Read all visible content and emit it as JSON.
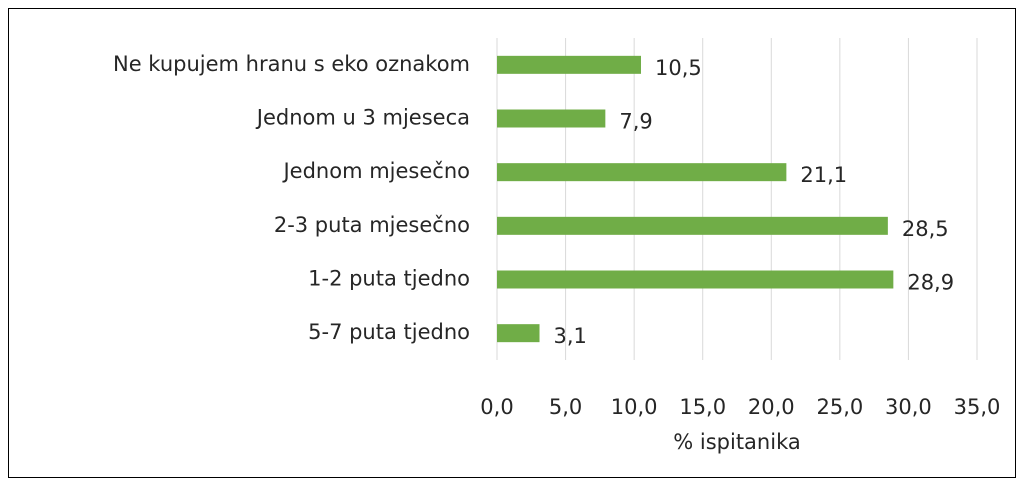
{
  "chart_data": {
    "type": "hbar",
    "categories": [
      "Ne kupujem hranu s eko oznakom",
      "Jednom u 3 mjeseca",
      "Jednom mjesečno",
      "2-3 puta mjesečno",
      "1-2 puta tjedno",
      "5-7 puta tjedno"
    ],
    "values": [
      10.5,
      7.9,
      21.1,
      28.5,
      28.9,
      3.1
    ],
    "value_labels": [
      "10,5",
      "7,9",
      "21,1",
      "28,5",
      "28,9",
      "3,1"
    ],
    "color": "#70ad47",
    "xlabel": "% ispitanika",
    "xlim": [
      0,
      35
    ],
    "xticks": [
      {
        "value": 0,
        "label": "0,0"
      },
      {
        "value": 5,
        "label": "5,0"
      },
      {
        "value": 10,
        "label": "10,0"
      },
      {
        "value": 15,
        "label": "15,0"
      },
      {
        "value": 20,
        "label": "20,0"
      },
      {
        "value": 25,
        "label": "25,0"
      },
      {
        "value": 30,
        "label": "30,0"
      },
      {
        "value": 35,
        "label": "35,0"
      }
    ],
    "grid": true
  }
}
